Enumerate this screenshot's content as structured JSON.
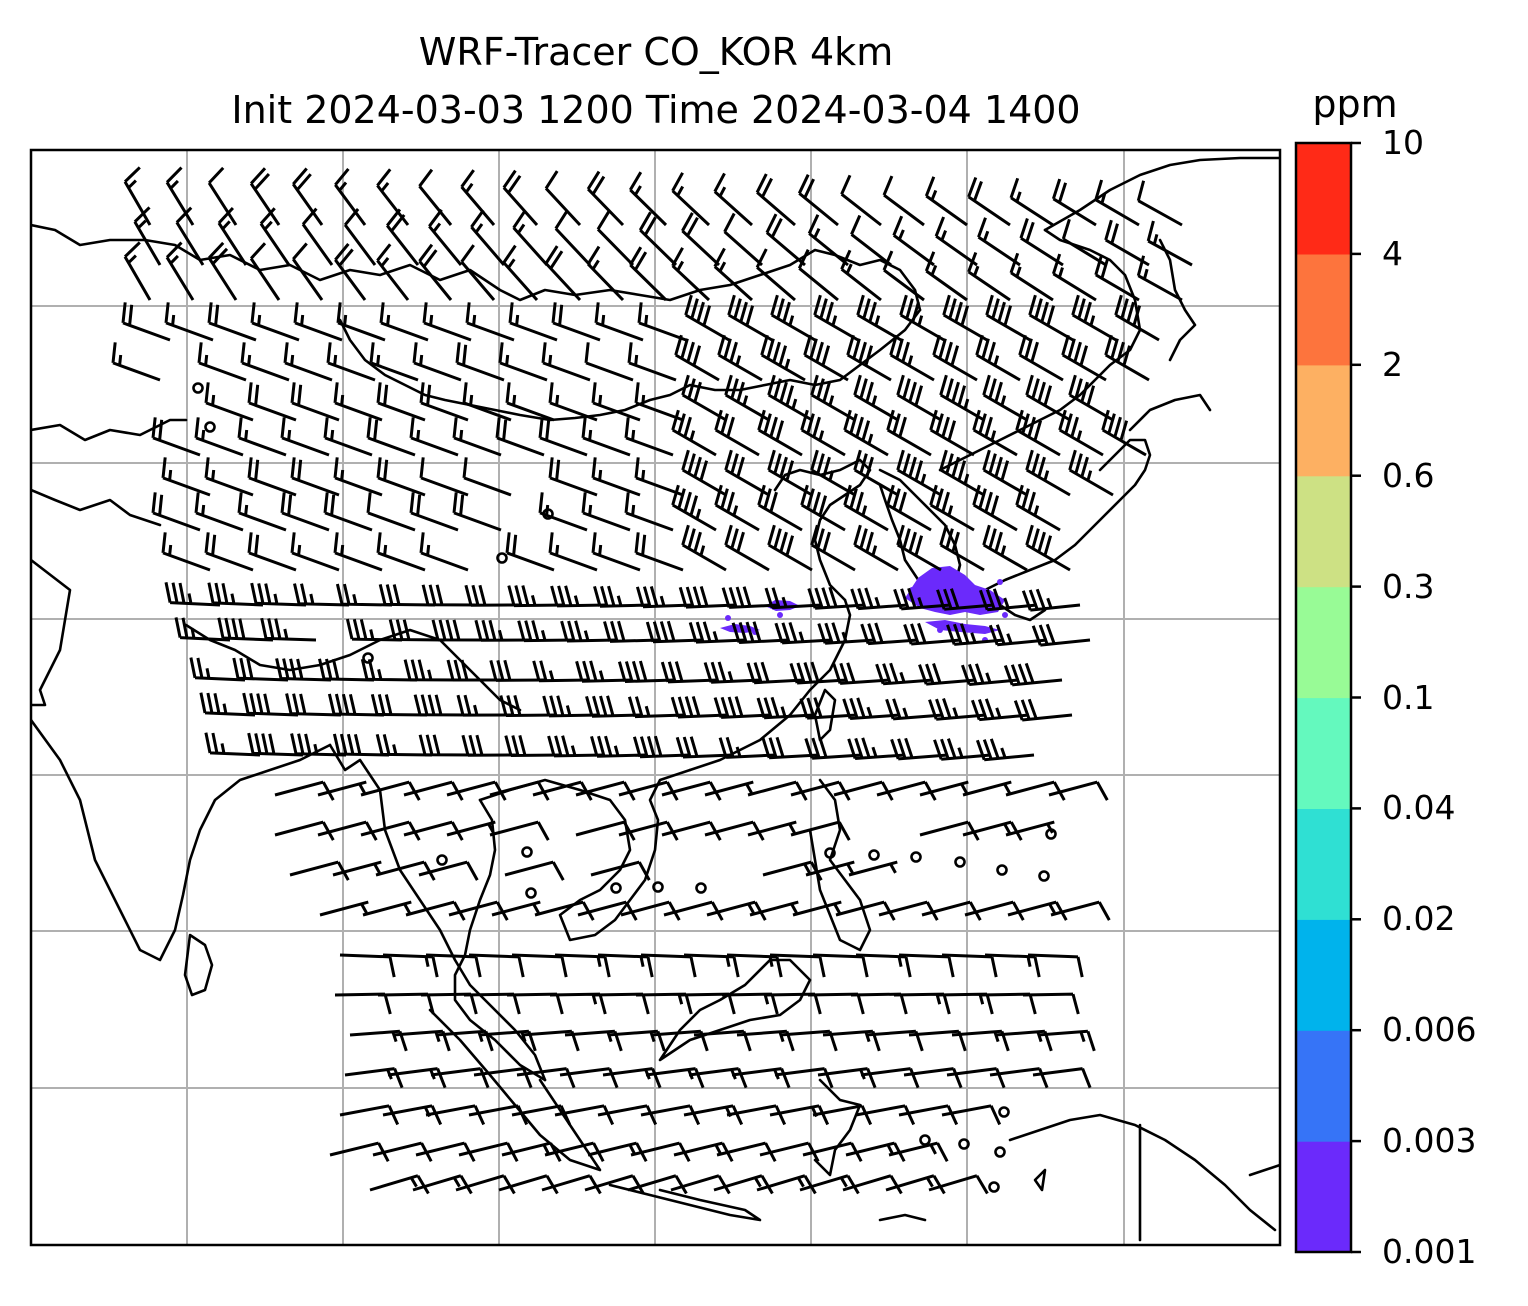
{
  "title": {
    "line1": "WRF-Tracer CO_KOR 4km",
    "line2": "Init 2024-03-03 1200 Time 2024-03-04 1400"
  },
  "colorbar": {
    "unit": "ppm",
    "levels": [
      "0.001",
      "0.003",
      "0.006",
      "0.02",
      "0.04",
      "0.1",
      "0.3",
      "0.6",
      "2",
      "4",
      "10"
    ],
    "colors": [
      "#6b2afb",
      "#3674f7",
      "#00b3ec",
      "#2fe0d3",
      "#64f9be",
      "#98fb96",
      "#cde184",
      "#fdb062",
      "#fd743d",
      "#ff2a17"
    ]
  },
  "map": {
    "plume_color": "#6b2afb",
    "coastline_color": "#000000",
    "gridline_color": "#b0b0b0"
  }
}
